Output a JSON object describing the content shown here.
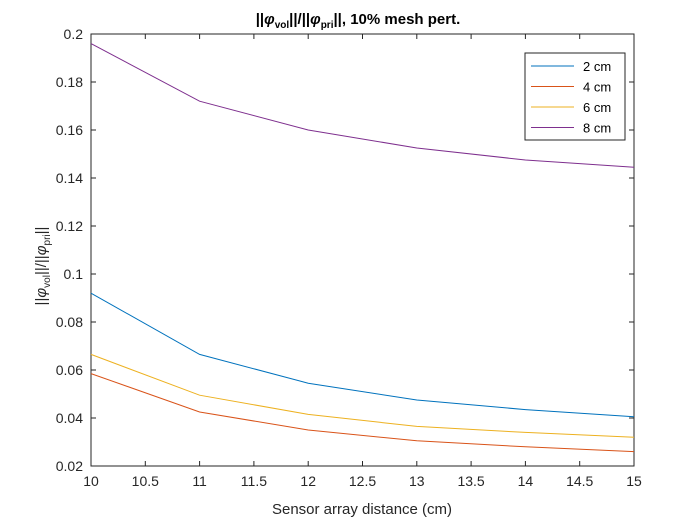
{
  "chart_data": {
    "type": "line",
    "title": {
      "pre": "||",
      "phi1": "φ",
      "sub1": "vol",
      "mid": "||/||",
      "phi2": "φ",
      "sub2": "pri",
      "post": "||, 10% mesh pert."
    },
    "xlabel": "Sensor array distance (cm)",
    "ylabel": {
      "pre": "||",
      "phi1": "φ",
      "sub1": "vol",
      "mid": "||/||",
      "phi2": "φ",
      "sub2": "pri",
      "post": "||"
    },
    "xlim": [
      10,
      15
    ],
    "ylim": [
      0.02,
      0.2
    ],
    "xticks": [
      10,
      10.5,
      11,
      11.5,
      12,
      12.5,
      13,
      13.5,
      14,
      14.5,
      15
    ],
    "xtick_labels": [
      "10",
      "10.5",
      "11",
      "11.5",
      "12",
      "12.5",
      "13",
      "13.5",
      "14",
      "14.5",
      "15"
    ],
    "yticks": [
      0.02,
      0.04,
      0.06,
      0.08,
      0.1,
      0.12,
      0.14,
      0.16,
      0.18,
      0.2
    ],
    "ytick_labels": [
      "0.02",
      "0.04",
      "0.06",
      "0.08",
      "0.1",
      "0.12",
      "0.14",
      "0.16",
      "0.18",
      "0.2"
    ],
    "grid": false,
    "legend_position": "top-right",
    "x": [
      10,
      11,
      12,
      13,
      14,
      15
    ],
    "series": [
      {
        "name": "2 cm",
        "color": "#0072BD",
        "values": [
          0.092,
          0.0665,
          0.0545,
          0.0475,
          0.0435,
          0.0405
        ]
      },
      {
        "name": "4 cm",
        "color": "#D95319",
        "values": [
          0.0585,
          0.0425,
          0.035,
          0.0305,
          0.028,
          0.026
        ]
      },
      {
        "name": "6 cm",
        "color": "#EDB120",
        "values": [
          0.0665,
          0.0495,
          0.0415,
          0.0365,
          0.034,
          0.032
        ]
      },
      {
        "name": "8 cm",
        "color": "#7E2F8E",
        "values": [
          0.196,
          0.172,
          0.16,
          0.1525,
          0.1475,
          0.1445
        ]
      }
    ]
  }
}
